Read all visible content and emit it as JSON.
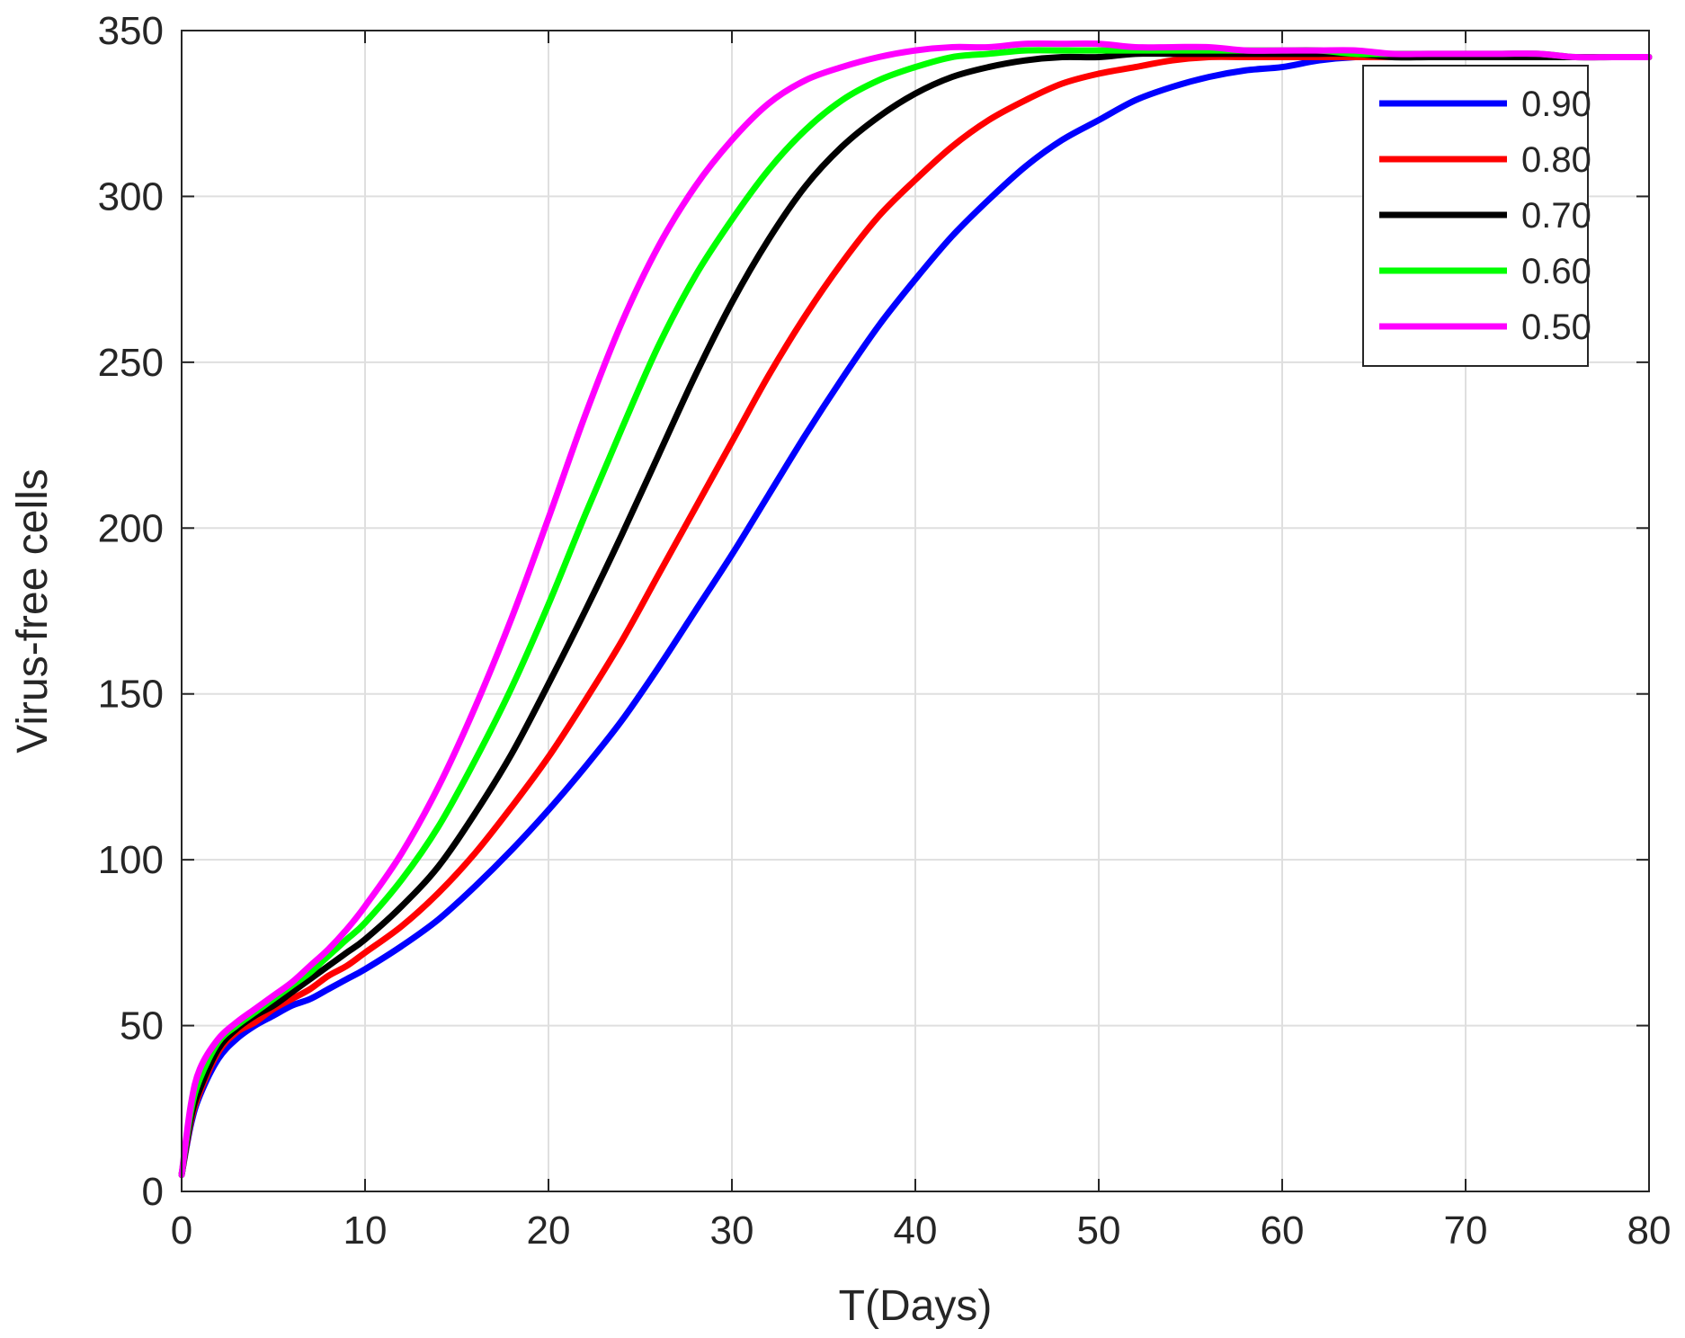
{
  "chart_data": {
    "type": "line",
    "title": "",
    "xlabel": "T(Days)",
    "ylabel": "Virus-free cells",
    "xlim": [
      0,
      80
    ],
    "ylim": [
      0,
      350
    ],
    "xticks": [
      0,
      10,
      20,
      30,
      40,
      50,
      60,
      70,
      80
    ],
    "yticks": [
      0,
      50,
      100,
      150,
      200,
      250,
      300,
      350
    ],
    "grid": true,
    "legend_position": "top-right",
    "x": [
      0,
      0.5,
      1,
      2,
      3,
      4,
      5,
      6,
      7,
      8,
      9,
      10,
      12,
      14,
      16,
      18,
      20,
      22,
      24,
      26,
      28,
      30,
      32,
      34,
      36,
      38,
      40,
      42,
      44,
      46,
      48,
      50,
      52,
      54,
      56,
      58,
      60,
      62,
      64,
      66,
      68,
      70,
      72,
      74,
      76,
      78,
      80
    ],
    "series": [
      {
        "name": "0.90",
        "color": "#0000ff",
        "values": [
          5,
          20,
          29,
          40,
          46,
          50,
          53,
          56,
          58,
          61,
          64,
          67,
          74,
          82,
          92,
          103,
          115,
          128,
          142,
          158,
          175,
          192,
          210,
          228,
          245,
          261,
          275,
          288,
          299,
          309,
          317,
          323,
          329,
          333,
          336,
          338,
          339,
          341,
          342,
          342,
          342,
          342,
          342,
          342,
          342,
          342,
          342
        ]
      },
      {
        "name": "0.80",
        "color": "#ff0000",
        "values": [
          5,
          21,
          30,
          42,
          48,
          51,
          55,
          58,
          61,
          65,
          68,
          72,
          80,
          90,
          102,
          116,
          131,
          148,
          166,
          186,
          206,
          226,
          246,
          264,
          280,
          294,
          305,
          315,
          323,
          329,
          334,
          337,
          339,
          341,
          342,
          342,
          342,
          342,
          342,
          342,
          342,
          342,
          342,
          342,
          342,
          342,
          342
        ]
      },
      {
        "name": "0.70",
        "color": "#000000",
        "values": [
          5,
          22,
          31,
          43,
          49,
          53,
          56,
          60,
          64,
          68,
          72,
          76,
          86,
          98,
          114,
          132,
          153,
          175,
          198,
          222,
          246,
          268,
          287,
          303,
          315,
          324,
          331,
          336,
          339,
          341,
          342,
          342,
          343,
          343,
          343,
          343,
          343,
          343,
          343,
          342,
          342,
          342,
          342,
          342,
          342,
          342,
          342
        ]
      },
      {
        "name": "0.60",
        "color": "#00ff00",
        "values": [
          5,
          24,
          34,
          45,
          50,
          54,
          58,
          62,
          66,
          71,
          76,
          81,
          94,
          110,
          130,
          152,
          177,
          204,
          230,
          255,
          276,
          293,
          308,
          320,
          329,
          335,
          339,
          342,
          343,
          344,
          344,
          344,
          344,
          344,
          344,
          344,
          344,
          344,
          343,
          343,
          343,
          343,
          343,
          343,
          342,
          342,
          342
        ]
      },
      {
        "name": "0.50",
        "color": "#ff00ff",
        "values": [
          5,
          26,
          37,
          46,
          51,
          55,
          59,
          63,
          68,
          73,
          79,
          86,
          102,
          122,
          146,
          173,
          203,
          234,
          262,
          285,
          303,
          317,
          328,
          335,
          339,
          342,
          344,
          345,
          345,
          346,
          346,
          346,
          345,
          345,
          345,
          344,
          344,
          344,
          344,
          343,
          343,
          343,
          343,
          343,
          342,
          342,
          342
        ]
      }
    ]
  }
}
